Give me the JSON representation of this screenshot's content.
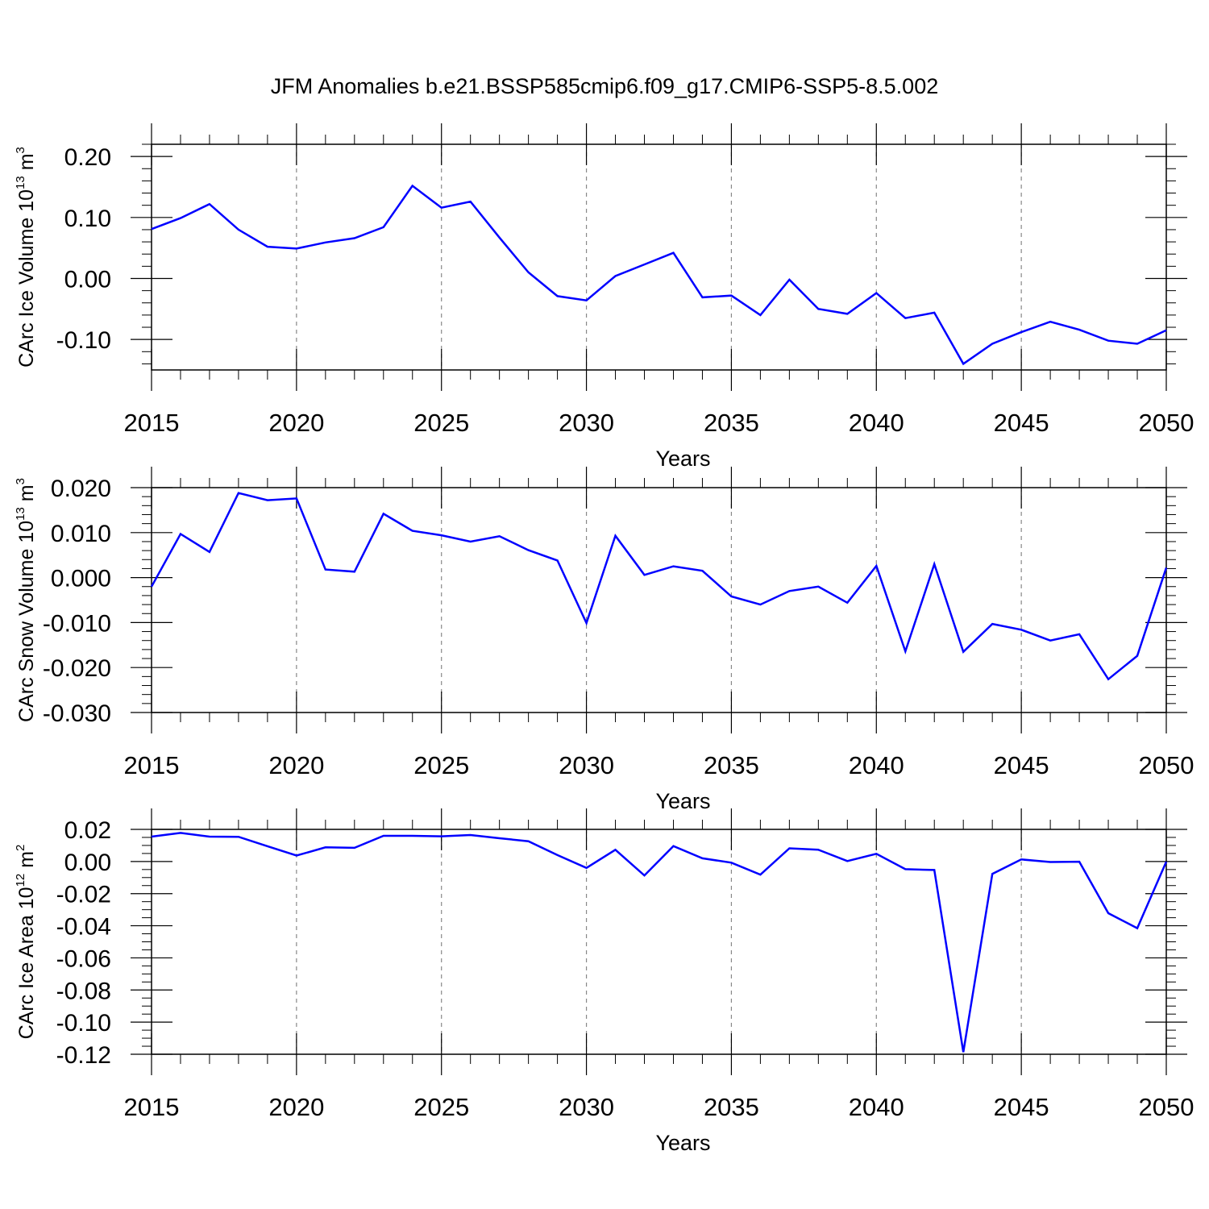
{
  "figure": {
    "title": "JFM Anomalies b.e21.BSSP585cmip6.f09_g17.CMIP6-SSP5-8.5.002"
  },
  "chart_data": [
    {
      "type": "line",
      "title": "",
      "xlabel": "Years",
      "ylabel": {
        "text": "CArc Ice Volume 10",
        "exp": "13",
        "unit": "m",
        "unit_exp": "3"
      },
      "xlim": [
        2015,
        2050
      ],
      "ylim": [
        -0.15,
        0.22
      ],
      "x_major_ticks": [
        2015,
        2020,
        2025,
        2030,
        2035,
        2040,
        2045,
        2050
      ],
      "x_tick_labels": [
        "2015",
        "2020",
        "2025",
        "2030",
        "2035",
        "2040",
        "2045",
        "2050"
      ],
      "y_major_ticks": [
        -0.1,
        0.0,
        0.1,
        0.2
      ],
      "y_tick_labels": [
        "-0.10",
        "0.00",
        "0.10",
        "0.20"
      ],
      "y_minor_step": 0.02,
      "vertical_dashed_grid_at": [
        2020,
        2025,
        2030,
        2035,
        2040,
        2045
      ],
      "line_color": "#0000ff",
      "x": [
        2015,
        2016,
        2017,
        2018,
        2019,
        2020,
        2021,
        2022,
        2023,
        2024,
        2025,
        2026,
        2027,
        2028,
        2029,
        2030,
        2031,
        2032,
        2033,
        2034,
        2035,
        2036,
        2037,
        2038,
        2039,
        2040,
        2041,
        2042,
        2043,
        2044,
        2045,
        2046,
        2047,
        2048,
        2049,
        2050
      ],
      "values": [
        0.081,
        0.099,
        0.122,
        0.08,
        0.052,
        0.049,
        0.059,
        0.066,
        0.084,
        0.152,
        0.116,
        0.126,
        0.067,
        0.01,
        -0.029,
        -0.036,
        0.004,
        0.023,
        0.042,
        -0.031,
        -0.028,
        -0.06,
        -0.002,
        -0.05,
        -0.058,
        -0.024,
        -0.065,
        -0.056,
        -0.14,
        -0.107,
        -0.088,
        -0.071,
        -0.084,
        -0.102,
        -0.107,
        -0.085
      ]
    },
    {
      "type": "line",
      "title": "",
      "xlabel": "Years",
      "ylabel": {
        "text": "CArc Snow Volume 10",
        "exp": "13",
        "unit": "m",
        "unit_exp": "3"
      },
      "xlim": [
        2015,
        2050
      ],
      "ylim": [
        -0.03,
        0.02
      ],
      "x_major_ticks": [
        2015,
        2020,
        2025,
        2030,
        2035,
        2040,
        2045,
        2050
      ],
      "x_tick_labels": [
        "2015",
        "2020",
        "2025",
        "2030",
        "2035",
        "2040",
        "2045",
        "2050"
      ],
      "y_major_ticks": [
        -0.03,
        -0.02,
        -0.01,
        0.0,
        0.01,
        0.02
      ],
      "y_tick_labels": [
        "-0.030",
        "-0.020",
        "-0.010",
        "0.000",
        "0.010",
        "0.020"
      ],
      "y_minor_step": 0.002,
      "vertical_dashed_grid_at": [
        2020,
        2025,
        2030,
        2035,
        2040,
        2045
      ],
      "line_color": "#0000ff",
      "x": [
        2015,
        2016,
        2017,
        2018,
        2019,
        2020,
        2021,
        2022,
        2023,
        2024,
        2025,
        2026,
        2027,
        2028,
        2029,
        2030,
        2031,
        2032,
        2033,
        2034,
        2035,
        2036,
        2037,
        2038,
        2039,
        2040,
        2041,
        2042,
        2043,
        2044,
        2045,
        2046,
        2047,
        2048,
        2049,
        2050
      ],
      "values": [
        -0.002,
        0.0097,
        0.0057,
        0.0188,
        0.0172,
        0.0176,
        0.0018,
        0.0013,
        0.0142,
        0.0104,
        0.0094,
        0.008,
        0.0092,
        0.0061,
        0.0038,
        -0.0101,
        0.0093,
        0.0006,
        0.0025,
        0.0015,
        -0.0042,
        -0.006,
        -0.003,
        -0.002,
        -0.0056,
        0.0026,
        -0.0164,
        0.003,
        -0.0165,
        -0.0103,
        -0.0116,
        -0.014,
        -0.0126,
        -0.0226,
        -0.0174,
        0.0022
      ]
    },
    {
      "type": "line",
      "title": "",
      "xlabel": "Years",
      "ylabel": {
        "text": "CArc Ice Area 10",
        "exp": "12",
        "unit": "m",
        "unit_exp": "2"
      },
      "xlim": [
        2015,
        2050
      ],
      "ylim": [
        -0.12,
        0.02
      ],
      "x_major_ticks": [
        2015,
        2020,
        2025,
        2030,
        2035,
        2040,
        2045,
        2050
      ],
      "x_tick_labels": [
        "2015",
        "2020",
        "2025",
        "2030",
        "2035",
        "2040",
        "2045",
        "2050"
      ],
      "y_major_ticks": [
        -0.12,
        -0.1,
        -0.08,
        -0.06,
        -0.04,
        -0.02,
        0.0,
        0.02
      ],
      "y_tick_labels": [
        "-0.12",
        "-0.10",
        "-0.08",
        "-0.06",
        "-0.04",
        "-0.02",
        "0.00",
        "0.02"
      ],
      "y_minor_step": 0.005,
      "vertical_dashed_grid_at": [
        2020,
        2025,
        2030,
        2035,
        2040,
        2045
      ],
      "line_color": "#0000ff",
      "x": [
        2015,
        2016,
        2017,
        2018,
        2019,
        2020,
        2021,
        2022,
        2023,
        2024,
        2025,
        2026,
        2027,
        2028,
        2029,
        2030,
        2031,
        2032,
        2033,
        2034,
        2035,
        2036,
        2037,
        2038,
        2039,
        2040,
        2041,
        2042,
        2043,
        2044,
        2045,
        2046,
        2047,
        2048,
        2049,
        2050
      ],
      "values": [
        0.0155,
        0.0178,
        0.0155,
        0.0154,
        0.0095,
        0.0037,
        0.0088,
        0.0085,
        0.016,
        0.016,
        0.0157,
        0.0165,
        0.0145,
        0.0126,
        0.004,
        -0.004,
        0.0073,
        -0.0087,
        0.0096,
        0.002,
        -0.0007,
        -0.0082,
        0.0082,
        0.0073,
        0.0003,
        0.0048,
        -0.0048,
        -0.0053,
        -0.1187,
        -0.0077,
        0.0013,
        -0.0003,
        -0.0001,
        -0.0322,
        -0.0415,
        -0.0001
      ]
    }
  ]
}
